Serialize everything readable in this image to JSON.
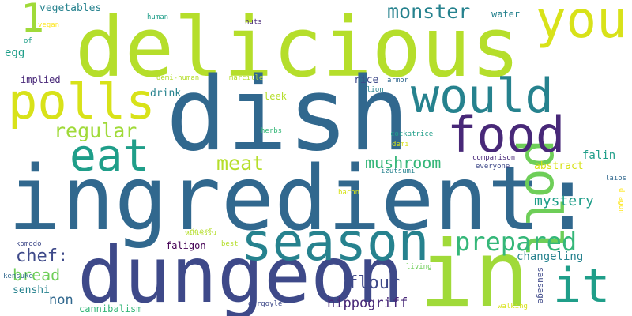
{
  "word_cloud": {
    "palette": {
      "yellow_green": "#b5de2b",
      "lime": "#a0da39",
      "green": "#6ece58",
      "mint": "#35b779",
      "teal": "#1f9e89",
      "cyan_blue": "#26828e",
      "steel_blue": "#31688e",
      "indigo": "#3e4989",
      "violet": "#482878",
      "deep_purple": "#440154",
      "light_yellow": "#d8e219",
      "pale_yellow": "#fde725"
    },
    "words": [
      {
        "text": "ingredient:",
        "color": "#31688e"
      },
      {
        "text": "delicious",
        "color": "#b5de2b"
      },
      {
        "text": "dish",
        "color": "#31688e"
      },
      {
        "text": "dungeon",
        "color": "#3e4989"
      },
      {
        "text": "in",
        "color": "#a0da39"
      },
      {
        "text": "season",
        "color": "#26828e"
      },
      {
        "text": "polls",
        "color": "#d8e219"
      },
      {
        "text": "you",
        "color": "#d8e219"
      },
      {
        "text": "would",
        "color": "#26828e"
      },
      {
        "text": "poll",
        "color": "#6ece58"
      },
      {
        "text": "food",
        "color": "#482878"
      },
      {
        "text": "eat",
        "color": "#1f9e89"
      },
      {
        "text": "it",
        "color": "#1f9e89"
      },
      {
        "text": "prepared",
        "color": "#35b779"
      },
      {
        "text": "1",
        "color": "#a0da39"
      },
      {
        "text": "regular",
        "color": "#a0da39"
      },
      {
        "text": "monster",
        "color": "#26828e"
      },
      {
        "text": "meat",
        "color": "#b5de2b"
      },
      {
        "text": "mushroom",
        "color": "#35b779"
      },
      {
        "text": "chef:",
        "color": "#3e4989"
      },
      {
        "text": "mystery",
        "color": "#1f9e89"
      },
      {
        "text": "flour",
        "color": "#3e4989"
      },
      {
        "text": "bread",
        "color": "#6ece58"
      },
      {
        "text": "falin",
        "color": "#1f9e89"
      },
      {
        "text": "hippogriff",
        "color": "#482878"
      },
      {
        "text": "non",
        "color": "#31688e"
      },
      {
        "text": "changeling",
        "color": "#26828e"
      },
      {
        "text": "abstract",
        "color": "#d8e219"
      },
      {
        "text": "vegetables",
        "color": "#26828e"
      },
      {
        "text": "egg",
        "color": "#1f9e89"
      },
      {
        "text": "drink",
        "color": "#26828e"
      },
      {
        "text": "rice",
        "color": "#3e4989"
      },
      {
        "text": "implied",
        "color": "#482878"
      },
      {
        "text": "water",
        "color": "#26828e"
      },
      {
        "text": "senshi",
        "color": "#26828e"
      },
      {
        "text": "faligon",
        "color": "#440154"
      },
      {
        "text": "leek",
        "color": "#b5de2b"
      },
      {
        "text": "sausage",
        "color": "#3e4989"
      },
      {
        "text": "cannibalism",
        "color": "#35b779"
      },
      {
        "text": "lion",
        "color": "#26828e"
      },
      {
        "text": "armor",
        "color": "#31688e"
      },
      {
        "text": "nuts",
        "color": "#482878"
      },
      {
        "text": "human",
        "color": "#1f9e89"
      },
      {
        "text": "of",
        "color": "#1f9e89"
      },
      {
        "text": "vegan",
        "color": "#fde725"
      },
      {
        "text": "demi-human",
        "color": "#b5de2b"
      },
      {
        "text": "marcille",
        "color": "#b5de2b"
      },
      {
        "text": "herbs",
        "color": "#35b779"
      },
      {
        "text": "cockatrice",
        "color": "#1f9e89"
      },
      {
        "text": "demi",
        "color": "#d8e219"
      },
      {
        "text": "izutsumi",
        "color": "#26828e"
      },
      {
        "text": "comparison",
        "color": "#482878"
      },
      {
        "text": "everyone",
        "color": "#3e4989"
      },
      {
        "text": "laios",
        "color": "#31688e"
      },
      {
        "text": "dragon",
        "color": "#fde725"
      },
      {
        "text": "bacon",
        "color": "#d8e219"
      },
      {
        "text": "หมึ่นิชิร์ริ้น",
        "color": "#b5de2b"
      },
      {
        "text": "best",
        "color": "#b5de2b"
      },
      {
        "text": "komodo",
        "color": "#3e4989"
      },
      {
        "text": "living",
        "color": "#6ece58"
      },
      {
        "text": "kensuke",
        "color": "#31688e"
      },
      {
        "text": "gargoyle",
        "color": "#3e4989"
      },
      {
        "text": "walking",
        "color": "#d8e219"
      }
    ]
  }
}
